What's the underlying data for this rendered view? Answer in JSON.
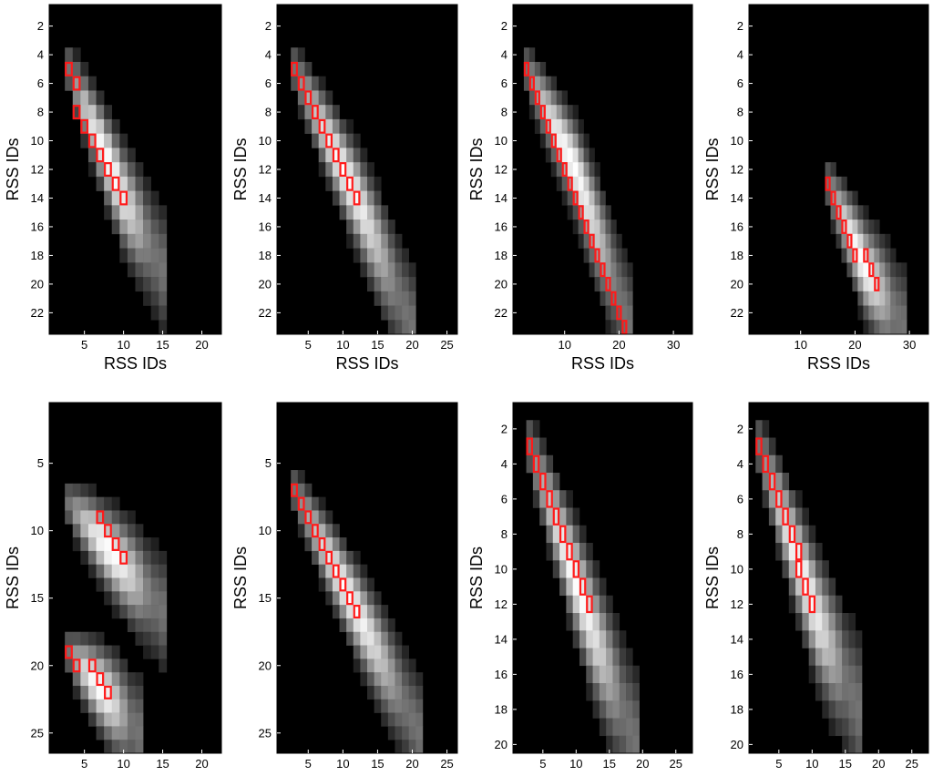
{
  "figure": {
    "background": "#ffffff",
    "heatmap_background": "#000000",
    "path_color": "#ff1a1a"
  },
  "chart_data": [
    {
      "type": "heatmap",
      "colormap": "gray",
      "xlabel": "RSS IDs",
      "ylabel": "RSS IDs",
      "xlim": [
        0.5,
        22.5
      ],
      "ylim": [
        0.5,
        23.5
      ],
      "xticks": [
        5,
        10,
        15,
        20
      ],
      "yticks": [
        2,
        4,
        6,
        8,
        10,
        12,
        14,
        16,
        18,
        20,
        22
      ],
      "main_band": [
        {
          "x": 3,
          "y": 5
        },
        {
          "x": 10,
          "y": 14
        },
        {
          "x": 15,
          "y": 19
        }
      ],
      "path": [
        [
          3,
          5
        ],
        [
          4,
          6
        ],
        [
          4,
          8
        ],
        [
          5,
          9
        ],
        [
          6,
          10
        ],
        [
          7,
          11
        ],
        [
          8,
          12
        ],
        [
          9,
          13
        ],
        [
          10,
          14
        ]
      ]
    },
    {
      "type": "heatmap",
      "colormap": "gray",
      "xlabel": "RSS IDs",
      "ylabel": "RSS IDs",
      "xlim": [
        0.5,
        26.5
      ],
      "ylim": [
        0.5,
        23.5
      ],
      "xticks": [
        5,
        10,
        15,
        20,
        25
      ],
      "yticks": [
        2,
        4,
        6,
        8,
        10,
        12,
        14,
        16,
        18,
        20,
        22
      ],
      "main_band": [
        {
          "x": 3,
          "y": 5
        },
        {
          "x": 12,
          "y": 14
        },
        {
          "x": 20,
          "y": 23
        }
      ],
      "path": [
        [
          3,
          5
        ],
        [
          4,
          6
        ],
        [
          5,
          7
        ],
        [
          6,
          8
        ],
        [
          7,
          9
        ],
        [
          8,
          10
        ],
        [
          9,
          11
        ],
        [
          10,
          12
        ],
        [
          11,
          13
        ],
        [
          12,
          14
        ]
      ]
    },
    {
      "type": "heatmap",
      "colormap": "gray",
      "xlabel": "RSS IDs",
      "ylabel": "RSS IDs",
      "xlim": [
        0.5,
        33.5
      ],
      "ylim": [
        0.5,
        23.5
      ],
      "xticks": [
        10,
        20,
        30
      ],
      "yticks": [
        2,
        4,
        6,
        8,
        10,
        12,
        14,
        16,
        18,
        20,
        22
      ],
      "main_band": [
        {
          "x": 3,
          "y": 5
        },
        {
          "x": 12,
          "y": 12
        },
        {
          "x": 22,
          "y": 23
        }
      ],
      "path": [
        [
          3,
          5
        ],
        [
          4,
          6
        ],
        [
          5,
          7
        ],
        [
          6,
          8
        ],
        [
          7,
          9
        ],
        [
          8,
          10
        ],
        [
          9,
          11
        ],
        [
          10,
          12
        ],
        [
          11,
          13
        ],
        [
          12,
          14
        ],
        [
          13,
          15
        ],
        [
          14,
          16
        ],
        [
          15,
          17
        ],
        [
          16,
          18
        ],
        [
          17,
          19
        ],
        [
          18,
          20
        ],
        [
          19,
          21
        ],
        [
          20,
          22
        ],
        [
          21,
          23
        ]
      ]
    },
    {
      "type": "heatmap",
      "colormap": "gray",
      "xlabel": "RSS IDs",
      "ylabel": "RSS IDs",
      "xlim": [
        0.5,
        33.5
      ],
      "ylim": [
        0.5,
        23.5
      ],
      "xticks": [
        10,
        20,
        30
      ],
      "yticks": [
        2,
        4,
        6,
        8,
        10,
        12,
        14,
        16,
        18,
        20,
        22
      ],
      "main_band": [
        {
          "x": 15,
          "y": 13
        },
        {
          "x": 22,
          "y": 19
        },
        {
          "x": 29,
          "y": 23
        }
      ],
      "path": [
        [
          15,
          13
        ],
        [
          16,
          14
        ],
        [
          17,
          15
        ],
        [
          18,
          16
        ],
        [
          19,
          17
        ],
        [
          20,
          18
        ],
        [
          22,
          18
        ],
        [
          23,
          19
        ],
        [
          24,
          20
        ]
      ]
    },
    {
      "type": "heatmap",
      "colormap": "gray",
      "xlabel": "RSS IDs",
      "ylabel": "RSS IDs",
      "xlim": [
        0.5,
        22.5
      ],
      "ylim": [
        0.5,
        26.5
      ],
      "xticks": [
        5,
        10,
        15,
        20
      ],
      "yticks": [
        5,
        10,
        15,
        20,
        25
      ],
      "main_band": [
        {
          "x": 3,
          "y": 8
        },
        {
          "x": 9,
          "y": 12
        },
        {
          "x": 15,
          "y": 16
        }
      ],
      "second_band": [
        {
          "x": 3,
          "y": 19
        },
        {
          "x": 9,
          "y": 23
        },
        {
          "x": 12,
          "y": 25
        }
      ],
      "path": [
        [
          7,
          9
        ],
        [
          8,
          10
        ],
        [
          9,
          11
        ],
        [
          10,
          12
        ]
      ],
      "path2": [
        [
          3,
          19
        ],
        [
          4,
          20
        ],
        [
          6,
          20
        ],
        [
          7,
          21
        ],
        [
          8,
          22
        ]
      ]
    },
    {
      "type": "heatmap",
      "colormap": "gray",
      "xlabel": "RSS IDs",
      "ylabel": "RSS IDs",
      "xlim": [
        0.5,
        26.5
      ],
      "ylim": [
        0.5,
        26.5
      ],
      "xticks": [
        5,
        10,
        15,
        20,
        25
      ],
      "yticks": [
        5,
        10,
        15,
        20,
        25
      ],
      "main_band": [
        {
          "x": 3,
          "y": 7
        },
        {
          "x": 13,
          "y": 17
        },
        {
          "x": 21,
          "y": 25
        }
      ],
      "path": [
        [
          3,
          7
        ],
        [
          4,
          8
        ],
        [
          5,
          9
        ],
        [
          6,
          10
        ],
        [
          7,
          11
        ],
        [
          8,
          12
        ],
        [
          9,
          13
        ],
        [
          10,
          14
        ],
        [
          11,
          15
        ],
        [
          12,
          16
        ]
      ]
    },
    {
      "type": "heatmap",
      "colormap": "gray",
      "xlabel": "RSS IDs",
      "ylabel": "RSS IDs",
      "xlim": [
        0.5,
        27.5
      ],
      "ylim": [
        0.5,
        20.5
      ],
      "xticks": [
        5,
        10,
        15,
        20,
        25
      ],
      "yticks": [
        2,
        4,
        6,
        8,
        10,
        12,
        14,
        16,
        18,
        20
      ],
      "main_band": [
        {
          "x": 3,
          "y": 3
        },
        {
          "x": 13,
          "y": 14
        },
        {
          "x": 19,
          "y": 20
        }
      ],
      "path": [
        [
          3,
          3
        ],
        [
          4,
          4
        ],
        [
          5,
          5
        ],
        [
          6,
          6
        ],
        [
          7,
          7
        ],
        [
          8,
          8
        ],
        [
          9,
          9
        ],
        [
          10,
          10
        ],
        [
          11,
          11
        ],
        [
          12,
          12
        ]
      ]
    },
    {
      "type": "heatmap",
      "colormap": "gray",
      "xlabel": "RSS IDs",
      "ylabel": "RSS IDs",
      "xlim": [
        0.5,
        27.5
      ],
      "ylim": [
        0.5,
        20.5
      ],
      "xticks": [
        5,
        10,
        15,
        20,
        25
      ],
      "yticks": [
        2,
        4,
        6,
        8,
        10,
        12,
        14,
        16,
        18,
        20
      ],
      "main_band": [
        {
          "x": 2,
          "y": 3
        },
        {
          "x": 11,
          "y": 13
        },
        {
          "x": 17,
          "y": 18
        }
      ],
      "path": [
        [
          2,
          3
        ],
        [
          3,
          4
        ],
        [
          4,
          5
        ],
        [
          5,
          6
        ],
        [
          6,
          7
        ],
        [
          7,
          8
        ],
        [
          8,
          9
        ],
        [
          8,
          10
        ],
        [
          9,
          11
        ],
        [
          10,
          12
        ]
      ]
    }
  ]
}
